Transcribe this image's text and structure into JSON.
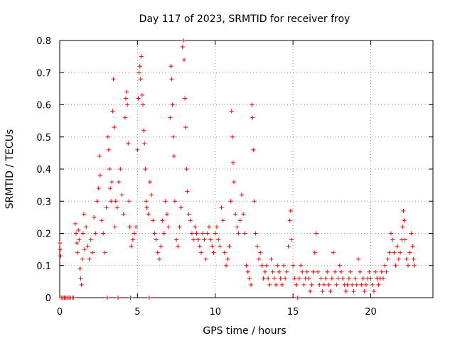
{
  "chart_data": {
    "type": "scatter",
    "title": "Day 117 of 2023, SRMTID for receiver froy",
    "xlabel": "GPS time / hours",
    "ylabel": "SRMTID / TECUs",
    "xlim": [
      0,
      24
    ],
    "ylim": [
      0,
      0.8
    ],
    "x_ticks": [
      "0",
      "5",
      "10",
      "15",
      "20"
    ],
    "y_ticks": [
      "0",
      "0.1",
      "0.2",
      "0.3",
      "0.4",
      "0.5",
      "0.6",
      "0.7",
      "0.8"
    ],
    "grid": true,
    "marker": "plus",
    "color": "#ff0000",
    "series": [
      {
        "name": "SRMTID",
        "points": [
          [
            0.0,
            0.17
          ],
          [
            0.02,
            0.15
          ],
          [
            0.05,
            0.13
          ],
          [
            0.1,
            0.0
          ],
          [
            0.2,
            0.0
          ],
          [
            0.3,
            0.0
          ],
          [
            0.4,
            0.0
          ],
          [
            0.5,
            0.0
          ],
          [
            0.6,
            0.0
          ],
          [
            0.7,
            0.0
          ],
          [
            0.8,
            0.0
          ],
          [
            0.9,
            0.0
          ],
          [
            1.0,
            0.23
          ],
          [
            1.05,
            0.2
          ],
          [
            1.1,
            0.17
          ],
          [
            1.15,
            0.14
          ],
          [
            1.2,
            0.21
          ],
          [
            1.25,
            0.18
          ],
          [
            1.3,
            0.09
          ],
          [
            1.35,
            0.06
          ],
          [
            1.4,
            0.04
          ],
          [
            1.45,
            0.12
          ],
          [
            1.5,
            0.2
          ],
          [
            1.55,
            0.26
          ],
          [
            1.6,
            0.15
          ],
          [
            1.7,
            0.22
          ],
          [
            1.8,
            0.16
          ],
          [
            1.9,
            0.12
          ],
          [
            2.0,
            0.18
          ],
          [
            2.1,
            0.14
          ],
          [
            2.2,
            0.25
          ],
          [
            2.3,
            0.2
          ],
          [
            2.4,
            0.3
          ],
          [
            2.5,
            0.34
          ],
          [
            2.55,
            0.44
          ],
          [
            2.6,
            0.38
          ],
          [
            2.7,
            0.24
          ],
          [
            2.8,
            0.2
          ],
          [
            2.9,
            0.14
          ],
          [
            3.0,
            0.28
          ],
          [
            3.05,
            0.0
          ],
          [
            3.1,
            0.5
          ],
          [
            3.15,
            0.46
          ],
          [
            3.2,
            0.4
          ],
          [
            3.25,
            0.34
          ],
          [
            3.3,
            0.3
          ],
          [
            3.35,
            0.36
          ],
          [
            3.4,
            0.58
          ],
          [
            3.45,
            0.68
          ],
          [
            3.5,
            0.53
          ],
          [
            3.55,
            0.22
          ],
          [
            3.6,
            0.3
          ],
          [
            3.7,
            0.28
          ],
          [
            3.75,
            0.0
          ],
          [
            3.8,
            0.36
          ],
          [
            3.9,
            0.4
          ],
          [
            4.0,
            0.32
          ],
          [
            4.1,
            0.26
          ],
          [
            4.2,
            0.56
          ],
          [
            4.25,
            0.62
          ],
          [
            4.3,
            0.64
          ],
          [
            4.35,
            0.6
          ],
          [
            4.4,
            0.48
          ],
          [
            4.45,
            0.3
          ],
          [
            4.5,
            0.22
          ],
          [
            4.55,
            0.0
          ],
          [
            4.6,
            0.16
          ],
          [
            4.7,
            0.18
          ],
          [
            4.8,
            0.2
          ],
          [
            4.9,
            0.22
          ],
          [
            5.0,
            0.46
          ],
          [
            5.05,
            0.62
          ],
          [
            5.1,
            0.7
          ],
          [
            5.15,
            0.72
          ],
          [
            5.2,
            0.68
          ],
          [
            5.25,
            0.75
          ],
          [
            5.3,
            0.63
          ],
          [
            5.35,
            0.6
          ],
          [
            5.4,
            0.52
          ],
          [
            5.45,
            0.48
          ],
          [
            5.5,
            0.4
          ],
          [
            5.55,
            0.3
          ],
          [
            5.6,
            0.28
          ],
          [
            5.7,
            0.26
          ],
          [
            5.75,
            0.0
          ],
          [
            5.8,
            0.36
          ],
          [
            5.9,
            0.32
          ],
          [
            6.0,
            0.24
          ],
          [
            6.1,
            0.2
          ],
          [
            6.2,
            0.18
          ],
          [
            6.3,
            0.14
          ],
          [
            6.4,
            0.12
          ],
          [
            6.5,
            0.16
          ],
          [
            6.6,
            0.24
          ],
          [
            6.7,
            0.2
          ],
          [
            6.8,
            0.3
          ],
          [
            6.9,
            0.26
          ],
          [
            7.0,
            0.22
          ],
          [
            7.1,
            0.56
          ],
          [
            7.15,
            0.72
          ],
          [
            7.2,
            0.68
          ],
          [
            7.25,
            0.6
          ],
          [
            7.3,
            0.5
          ],
          [
            7.35,
            0.44
          ],
          [
            7.4,
            0.3
          ],
          [
            7.5,
            0.18
          ],
          [
            7.6,
            0.16
          ],
          [
            7.7,
            0.22
          ],
          [
            7.8,
            0.28
          ],
          [
            7.9,
            0.78
          ],
          [
            7.95,
            0.8
          ],
          [
            8.0,
            0.74
          ],
          [
            8.05,
            0.62
          ],
          [
            8.1,
            0.53
          ],
          [
            8.15,
            0.4
          ],
          [
            8.2,
            0.33
          ],
          [
            8.3,
            0.26
          ],
          [
            8.4,
            0.24
          ],
          [
            8.5,
            0.2
          ],
          [
            8.6,
            0.18
          ],
          [
            8.7,
            0.22
          ],
          [
            8.8,
            0.2
          ],
          [
            8.9,
            0.18
          ],
          [
            9.0,
            0.16
          ],
          [
            9.1,
            0.14
          ],
          [
            9.2,
            0.2
          ],
          [
            9.3,
            0.18
          ],
          [
            9.4,
            0.12
          ],
          [
            9.5,
            0.2
          ],
          [
            9.6,
            0.22
          ],
          [
            9.7,
            0.18
          ],
          [
            9.8,
            0.16
          ],
          [
            9.9,
            0.14
          ],
          [
            10.0,
            0.2
          ],
          [
            10.1,
            0.22
          ],
          [
            10.2,
            0.18
          ],
          [
            10.3,
            0.16
          ],
          [
            10.4,
            0.28
          ],
          [
            10.5,
            0.24
          ],
          [
            10.6,
            0.14
          ],
          [
            10.7,
            0.1
          ],
          [
            10.8,
            0.12
          ],
          [
            10.9,
            0.16
          ],
          [
            11.0,
            0.3
          ],
          [
            11.05,
            0.58
          ],
          [
            11.1,
            0.5
          ],
          [
            11.15,
            0.42
          ],
          [
            11.2,
            0.36
          ],
          [
            11.3,
            0.26
          ],
          [
            11.4,
            0.22
          ],
          [
            11.5,
            0.2
          ],
          [
            11.6,
            0.24
          ],
          [
            11.7,
            0.32
          ],
          [
            11.8,
            0.26
          ],
          [
            11.9,
            0.2
          ],
          [
            12.0,
            0.1
          ],
          [
            12.1,
            0.08
          ],
          [
            12.2,
            0.06
          ],
          [
            12.3,
            0.04
          ],
          [
            12.35,
            0.6
          ],
          [
            12.4,
            0.56
          ],
          [
            12.45,
            0.46
          ],
          [
            12.5,
            0.3
          ],
          [
            12.6,
            0.2
          ],
          [
            12.7,
            0.16
          ],
          [
            12.8,
            0.12
          ],
          [
            12.9,
            0.14
          ],
          [
            13.0,
            0.1
          ],
          [
            13.1,
            0.06
          ],
          [
            13.2,
            0.08
          ],
          [
            13.3,
            0.1
          ],
          [
            13.4,
            0.06
          ],
          [
            13.5,
            0.04
          ],
          [
            13.6,
            0.12
          ],
          [
            13.7,
            0.08
          ],
          [
            13.8,
            0.06
          ],
          [
            13.9,
            0.04
          ],
          [
            14.0,
            0.1
          ],
          [
            14.1,
            0.08
          ],
          [
            14.2,
            0.06
          ],
          [
            14.3,
            0.04
          ],
          [
            14.4,
            0.1
          ],
          [
            14.5,
            0.06
          ],
          [
            14.6,
            0.08
          ],
          [
            14.7,
            0.16
          ],
          [
            14.8,
            0.24
          ],
          [
            14.85,
            0.27
          ],
          [
            14.9,
            0.18
          ],
          [
            15.0,
            0.1
          ],
          [
            15.1,
            0.06
          ],
          [
            15.2,
            0.04
          ],
          [
            15.3,
            0.0
          ],
          [
            15.4,
            0.06
          ],
          [
            15.5,
            0.1
          ],
          [
            15.6,
            0.08
          ],
          [
            15.7,
            0.04
          ],
          [
            15.8,
            0.06
          ],
          [
            15.9,
            0.08
          ],
          [
            16.0,
            0.06
          ],
          [
            16.1,
            0.02
          ],
          [
            16.2,
            0.04
          ],
          [
            16.3,
            0.08
          ],
          [
            16.4,
            0.14
          ],
          [
            16.5,
            0.2
          ],
          [
            16.6,
            0.08
          ],
          [
            16.7,
            0.04
          ],
          [
            16.8,
            0.06
          ],
          [
            16.9,
            0.02
          ],
          [
            17.0,
            0.04
          ],
          [
            17.1,
            0.06
          ],
          [
            17.2,
            0.08
          ],
          [
            17.3,
            0.04
          ],
          [
            17.4,
            0.02
          ],
          [
            17.5,
            0.06
          ],
          [
            17.6,
            0.14
          ],
          [
            17.7,
            0.08
          ],
          [
            17.8,
            0.04
          ],
          [
            17.9,
            0.06
          ],
          [
            18.0,
            0.1
          ],
          [
            18.1,
            0.08
          ],
          [
            18.2,
            0.06
          ],
          [
            18.3,
            0.04
          ],
          [
            18.4,
            0.02
          ],
          [
            18.5,
            0.04
          ],
          [
            18.6,
            0.06
          ],
          [
            18.7,
            0.08
          ],
          [
            18.8,
            0.04
          ],
          [
            18.9,
            0.02
          ],
          [
            19.0,
            0.06
          ],
          [
            19.1,
            0.04
          ],
          [
            19.2,
            0.12
          ],
          [
            19.3,
            0.08
          ],
          [
            19.4,
            0.04
          ],
          [
            19.5,
            0.06
          ],
          [
            19.6,
            0.02
          ],
          [
            19.7,
            0.04
          ],
          [
            19.8,
            0.06
          ],
          [
            19.9,
            0.08
          ],
          [
            20.0,
            0.06
          ],
          [
            20.1,
            0.04
          ],
          [
            20.2,
            0.02
          ],
          [
            20.3,
            0.08
          ],
          [
            20.4,
            0.06
          ],
          [
            20.5,
            0.04
          ],
          [
            20.6,
            0.06
          ],
          [
            20.7,
            0.08
          ],
          [
            20.8,
            0.06
          ],
          [
            20.9,
            0.1
          ],
          [
            21.0,
            0.08
          ],
          [
            21.1,
            0.12
          ],
          [
            21.2,
            0.14
          ],
          [
            21.3,
            0.2
          ],
          [
            21.4,
            0.18
          ],
          [
            21.5,
            0.14
          ],
          [
            21.6,
            0.1
          ],
          [
            21.7,
            0.16
          ],
          [
            21.8,
            0.12
          ],
          [
            21.9,
            0.14
          ],
          [
            22.0,
            0.18
          ],
          [
            22.05,
            0.22
          ],
          [
            22.1,
            0.27
          ],
          [
            22.15,
            0.24
          ],
          [
            22.2,
            0.18
          ],
          [
            22.3,
            0.12
          ],
          [
            22.4,
            0.1
          ],
          [
            22.5,
            0.14
          ],
          [
            22.6,
            0.2
          ],
          [
            22.7,
            0.16
          ],
          [
            22.75,
            0.12
          ],
          [
            22.8,
            0.1
          ]
        ]
      }
    ]
  }
}
